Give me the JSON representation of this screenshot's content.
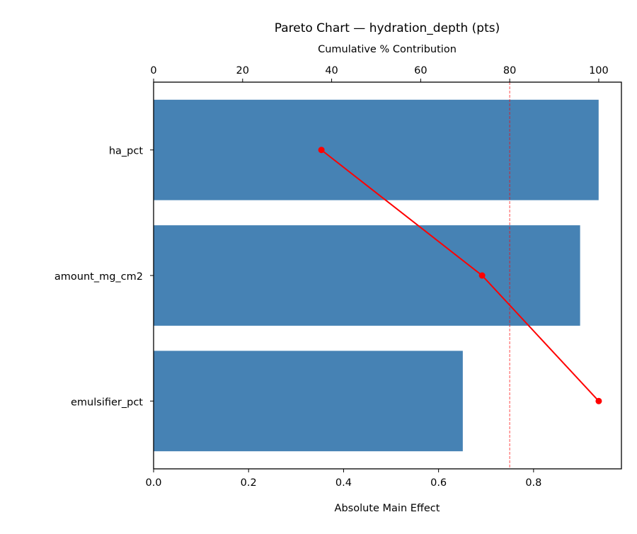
{
  "chart_data": {
    "type": "bar",
    "orientation": "horizontal",
    "title": "Pareto Chart — hydration_depth (pts)",
    "xlabel": "Absolute Main Effect",
    "x2label": "Cumulative % Contribution",
    "categories": [
      "ha_pct",
      "amount_mg_cm2",
      "emulsifier_pct"
    ],
    "values": [
      0.937,
      0.898,
      0.651
    ],
    "cumulative_pct": [
      37.7,
      73.8,
      100.0
    ],
    "threshold_pct": 80,
    "xlim": [
      0,
      0.985
    ],
    "x2lim": [
      0,
      105.1
    ],
    "xticks": [
      "0.0",
      "0.2",
      "0.4",
      "0.6",
      "0.8"
    ],
    "x2ticks": [
      "0",
      "20",
      "40",
      "60",
      "80",
      "100"
    ],
    "grid": false,
    "colors": {
      "bars": "#4682b4",
      "cumulative": "#ff0000",
      "threshold": "#ff0000"
    }
  }
}
